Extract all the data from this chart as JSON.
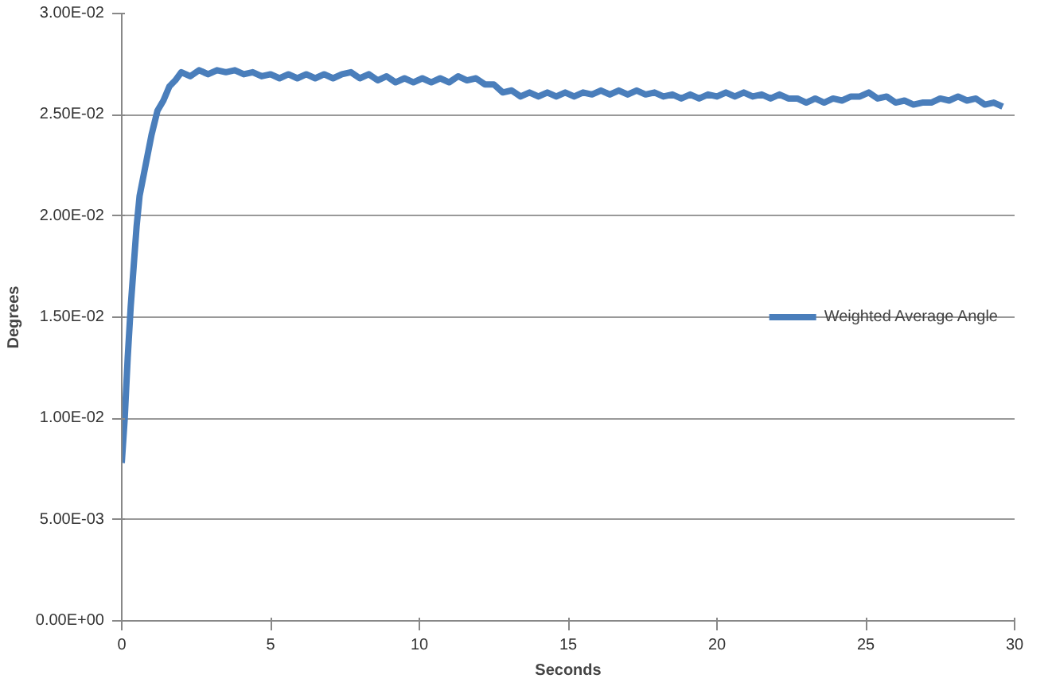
{
  "chart_data": {
    "type": "line",
    "xlabel": "Seconds",
    "ylabel": "Degrees",
    "xlim": [
      0,
      30
    ],
    "ylim": [
      0,
      0.03
    ],
    "xticks": [
      0,
      5,
      10,
      15,
      20,
      25,
      30
    ],
    "yticks": [
      {
        "value": 0,
        "label": "0.00E+00"
      },
      {
        "value": 0.005,
        "label": "5.00E-03"
      },
      {
        "value": 0.01,
        "label": "1.00E-02"
      },
      {
        "value": 0.015,
        "label": "1.50E-02"
      },
      {
        "value": 0.02,
        "label": "2.00E-02"
      },
      {
        "value": 0.025,
        "label": "2.50E-02"
      },
      {
        "value": 0.03,
        "label": "3.00E-02"
      }
    ],
    "grid": "y",
    "legend": "right",
    "marker": "none",
    "line_style": "solid",
    "x": [
      0,
      0.1,
      0.2,
      0.3,
      0.4,
      0.5,
      0.6,
      0.8,
      1.0,
      1.2,
      1.4,
      1.6,
      1.8,
      2.0,
      2.3,
      2.6,
      2.9,
      3.2,
      3.5,
      3.8,
      4.1,
      4.4,
      4.7,
      5.0,
      5.3,
      5.6,
      5.9,
      6.2,
      6.5,
      6.8,
      7.1,
      7.4,
      7.7,
      8.0,
      8.3,
      8.6,
      8.9,
      9.2,
      9.5,
      9.8,
      10.1,
      10.4,
      10.7,
      11.0,
      11.3,
      11.6,
      11.9,
      12.2,
      12.5,
      12.8,
      13.1,
      13.4,
      13.7,
      14.0,
      14.3,
      14.6,
      14.9,
      15.2,
      15.5,
      15.8,
      16.1,
      16.4,
      16.7,
      17.0,
      17.3,
      17.6,
      17.9,
      18.2,
      18.5,
      18.8,
      19.1,
      19.4,
      19.7,
      20.0,
      20.3,
      20.6,
      20.9,
      21.2,
      21.5,
      21.8,
      22.1,
      22.4,
      22.7,
      23.0,
      23.3,
      23.6,
      23.9,
      24.2,
      24.5,
      24.8,
      25.1,
      25.4,
      25.7,
      26.0,
      26.3,
      26.6,
      26.9,
      27.2,
      27.5,
      27.8,
      28.1,
      28.4,
      28.7,
      29.0,
      29.3,
      29.6
    ],
    "series": [
      {
        "name": "Weighted Average Angle",
        "color": "#4a7ebb",
        "values": [
          0.0078,
          0.01,
          0.013,
          0.0155,
          0.0175,
          0.0195,
          0.021,
          0.0225,
          0.024,
          0.0252,
          0.0257,
          0.0264,
          0.0267,
          0.0271,
          0.0269,
          0.0272,
          0.027,
          0.0272,
          0.0271,
          0.0272,
          0.027,
          0.0271,
          0.0269,
          0.027,
          0.0268,
          0.027,
          0.0268,
          0.027,
          0.0268,
          0.027,
          0.0268,
          0.027,
          0.0271,
          0.0268,
          0.027,
          0.0267,
          0.0269,
          0.0266,
          0.0268,
          0.0266,
          0.0268,
          0.0266,
          0.0268,
          0.0266,
          0.0269,
          0.0267,
          0.0268,
          0.0265,
          0.0265,
          0.0261,
          0.0262,
          0.0259,
          0.0261,
          0.0259,
          0.0261,
          0.0259,
          0.0261,
          0.0259,
          0.0261,
          0.026,
          0.0262,
          0.026,
          0.0262,
          0.026,
          0.0262,
          0.026,
          0.0261,
          0.0259,
          0.026,
          0.0258,
          0.026,
          0.0258,
          0.026,
          0.0259,
          0.0261,
          0.0259,
          0.0261,
          0.0259,
          0.026,
          0.0258,
          0.026,
          0.0258,
          0.0258,
          0.0256,
          0.0258,
          0.0256,
          0.0258,
          0.0257,
          0.0259,
          0.0259,
          0.0261,
          0.0258,
          0.0259,
          0.0256,
          0.0257,
          0.0255,
          0.0256,
          0.0256,
          0.0258,
          0.0257,
          0.0259,
          0.0257,
          0.0258,
          0.0255,
          0.0256,
          0.0254
        ]
      }
    ]
  }
}
